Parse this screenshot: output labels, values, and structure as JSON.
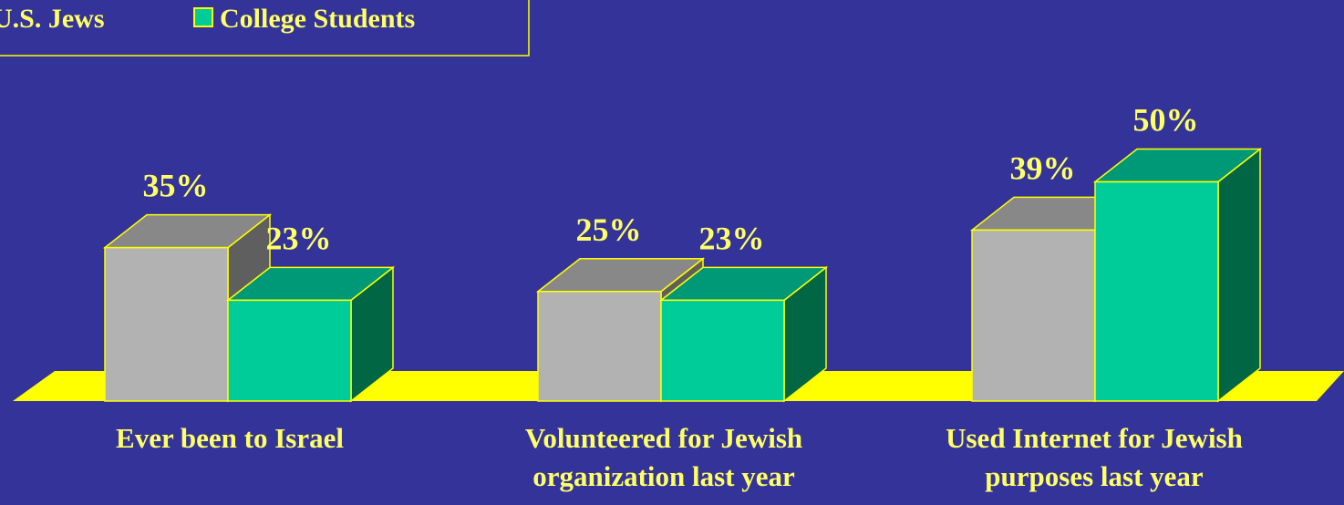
{
  "chart_data": {
    "type": "bar",
    "title": "",
    "xlabel": "",
    "ylabel": "",
    "categories": [
      [
        "Ever  been to Israel"
      ],
      [
        "Volunteered for Jewish",
        "organization last year"
      ],
      [
        "Used Internet for Jewish",
        "purposes last year"
      ]
    ],
    "series": [
      {
        "name": "U.S. Jews",
        "values": [
          35,
          25,
          39
        ],
        "value_labels": [
          "35%",
          "25%",
          "39%"
        ]
      },
      {
        "name": "College Students",
        "values": [
          23,
          23,
          50
        ],
        "value_labels": [
          "23%",
          "23%",
          "50%"
        ]
      }
    ],
    "ylim": [
      0,
      50
    ],
    "grid": false,
    "legend_position": "top-left",
    "three_d": true
  },
  "colors": {
    "background": "#333399",
    "floor": "#ffff00",
    "outline": "#ffff00",
    "text": "#ffff66",
    "series_front": [
      "#b2b2b2",
      "#00cc99"
    ],
    "series_top": [
      "#888888",
      "#009977"
    ],
    "series_side": [
      "#5f5f5f",
      "#006644"
    ]
  }
}
